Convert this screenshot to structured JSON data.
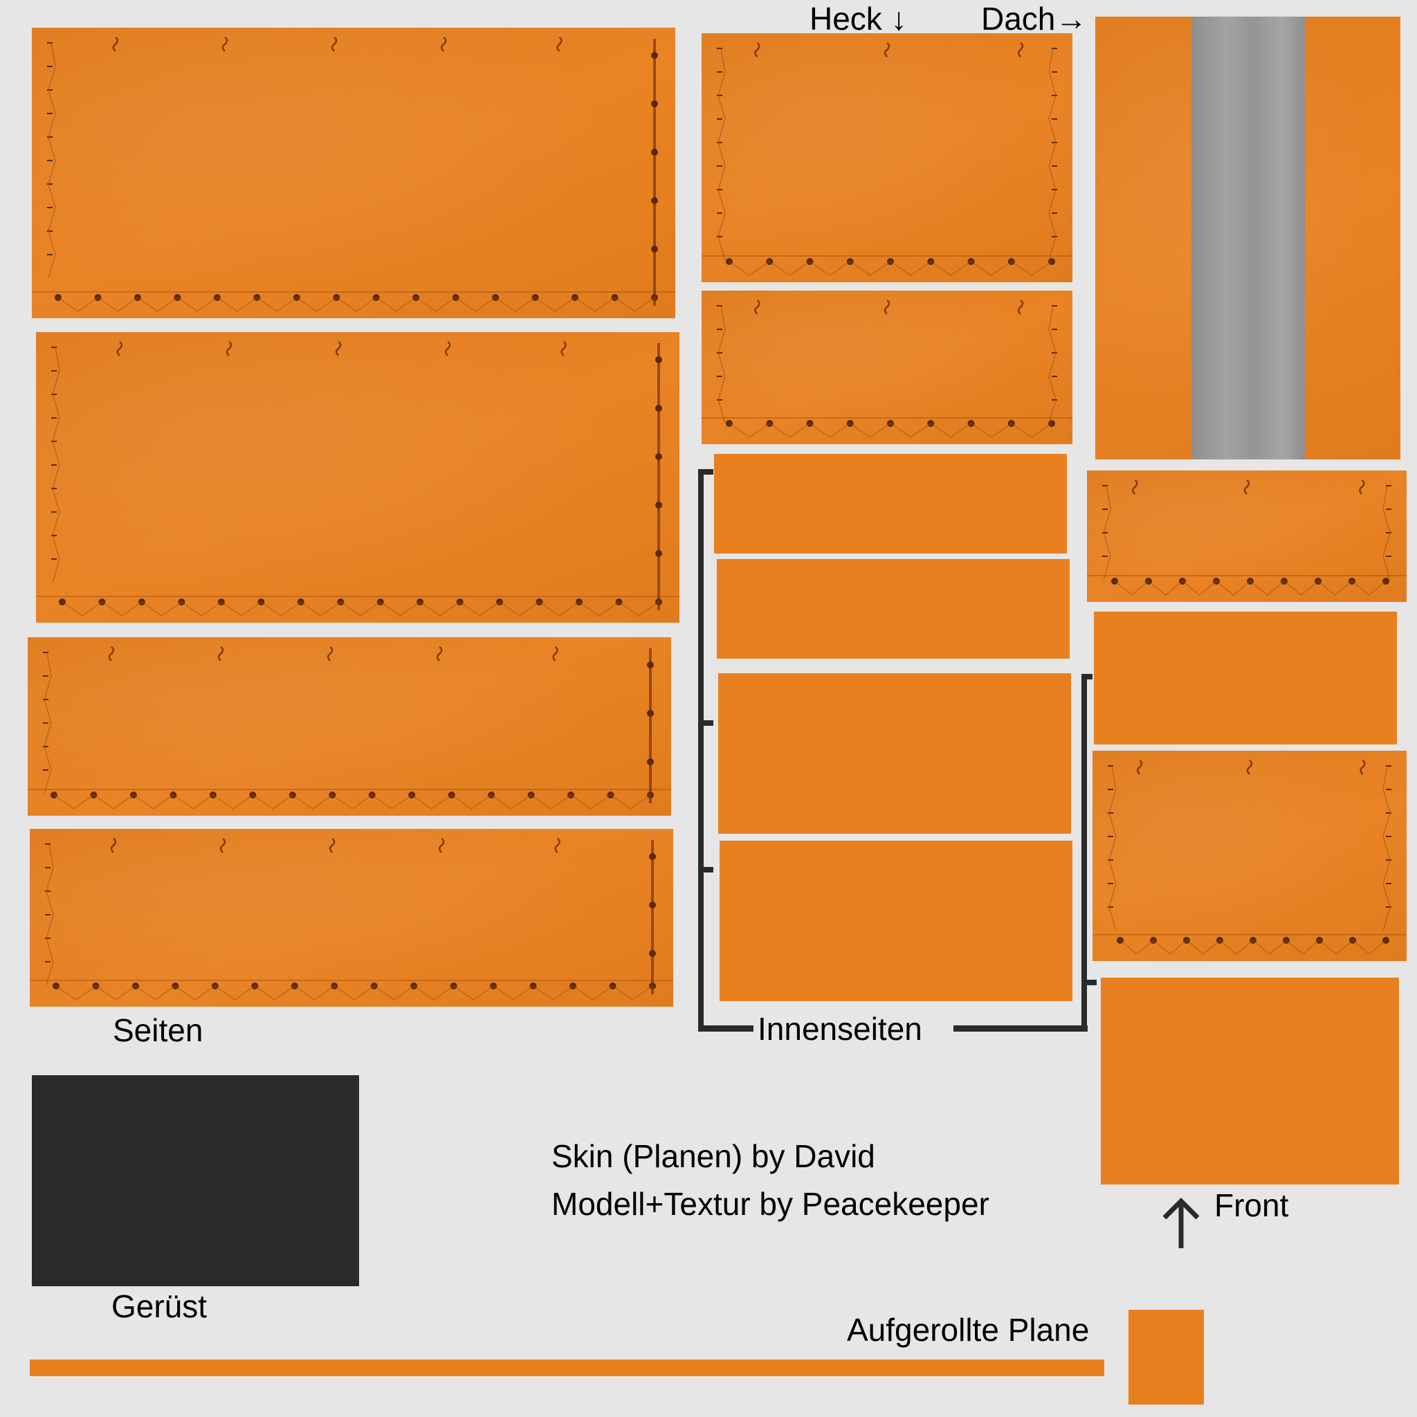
{
  "labels": {
    "heck": "Heck ↓",
    "dach": "Dach→",
    "seiten": "Seiten",
    "innenseiten": "Innenseiten",
    "geruest": "Gerüst",
    "front": "Front",
    "aufgerollte_plane": "Aufgerollte Plane"
  },
  "credits": {
    "line1": "Skin (Planen) by David",
    "line2": "Modell+Textur by Peacekeeper"
  },
  "icons": {
    "front_arrow": "arrow-up-icon"
  },
  "colors": {
    "background": "#e6e6e6",
    "tarp_orange": "#e8801f",
    "frame_dark": "#2a2a2a",
    "roof_gray": "#9a9a9a",
    "eyelet_brown": "#5a2a08"
  }
}
